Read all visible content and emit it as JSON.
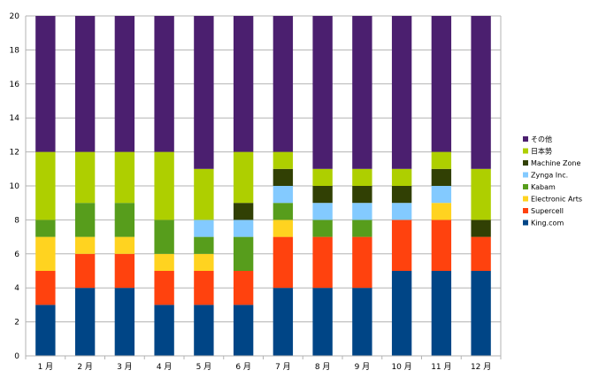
{
  "chart_data": {
    "type": "bar",
    "stacked": true,
    "categories": [
      "1 月",
      "2 月",
      "3 月",
      "4 月",
      "5 月",
      "6 月",
      "7 月",
      "8 月",
      "9 月",
      "10 月",
      "11 月",
      "12 月"
    ],
    "series": [
      {
        "name": "King.com",
        "color": "#004586",
        "values": [
          3,
          4,
          4,
          3,
          3,
          3,
          4,
          4,
          4,
          5,
          5,
          5
        ]
      },
      {
        "name": "Supercell",
        "color": "#ff420e",
        "values": [
          2,
          2,
          2,
          2,
          2,
          2,
          3,
          3,
          3,
          3,
          3,
          2
        ]
      },
      {
        "name": "Electronic Arts",
        "color": "#ffd320",
        "values": [
          2,
          1,
          1,
          1,
          1,
          0,
          1,
          0,
          0,
          0,
          1,
          0
        ]
      },
      {
        "name": "Kabam",
        "color": "#579d1c",
        "values": [
          1,
          2,
          2,
          2,
          1,
          2,
          1,
          1,
          1,
          0,
          0,
          0
        ]
      },
      {
        "name": "Zynga Inc.",
        "color": "#83caff",
        "values": [
          0,
          0,
          0,
          0,
          1,
          1,
          1,
          1,
          1,
          1,
          1,
          0
        ]
      },
      {
        "name": "Machine Zone",
        "color": "#314004",
        "values": [
          0,
          0,
          0,
          0,
          0,
          1,
          1,
          1,
          1,
          1,
          1,
          1
        ]
      },
      {
        "name": "日本勢",
        "color": "#aecf00",
        "values": [
          4,
          3,
          3,
          4,
          3,
          3,
          1,
          1,
          1,
          1,
          1,
          3
        ]
      },
      {
        "name": "その他",
        "color": "#4b1f6f",
        "values": [
          8,
          8,
          8,
          8,
          9,
          8,
          8,
          9,
          9,
          9,
          8,
          9
        ]
      }
    ],
    "ylim": [
      0,
      20
    ],
    "yticks": [
      "0",
      "2",
      "4",
      "6",
      "8",
      "10",
      "12",
      "14",
      "16",
      "18",
      "20"
    ],
    "grid": true,
    "legend_position": "right"
  }
}
